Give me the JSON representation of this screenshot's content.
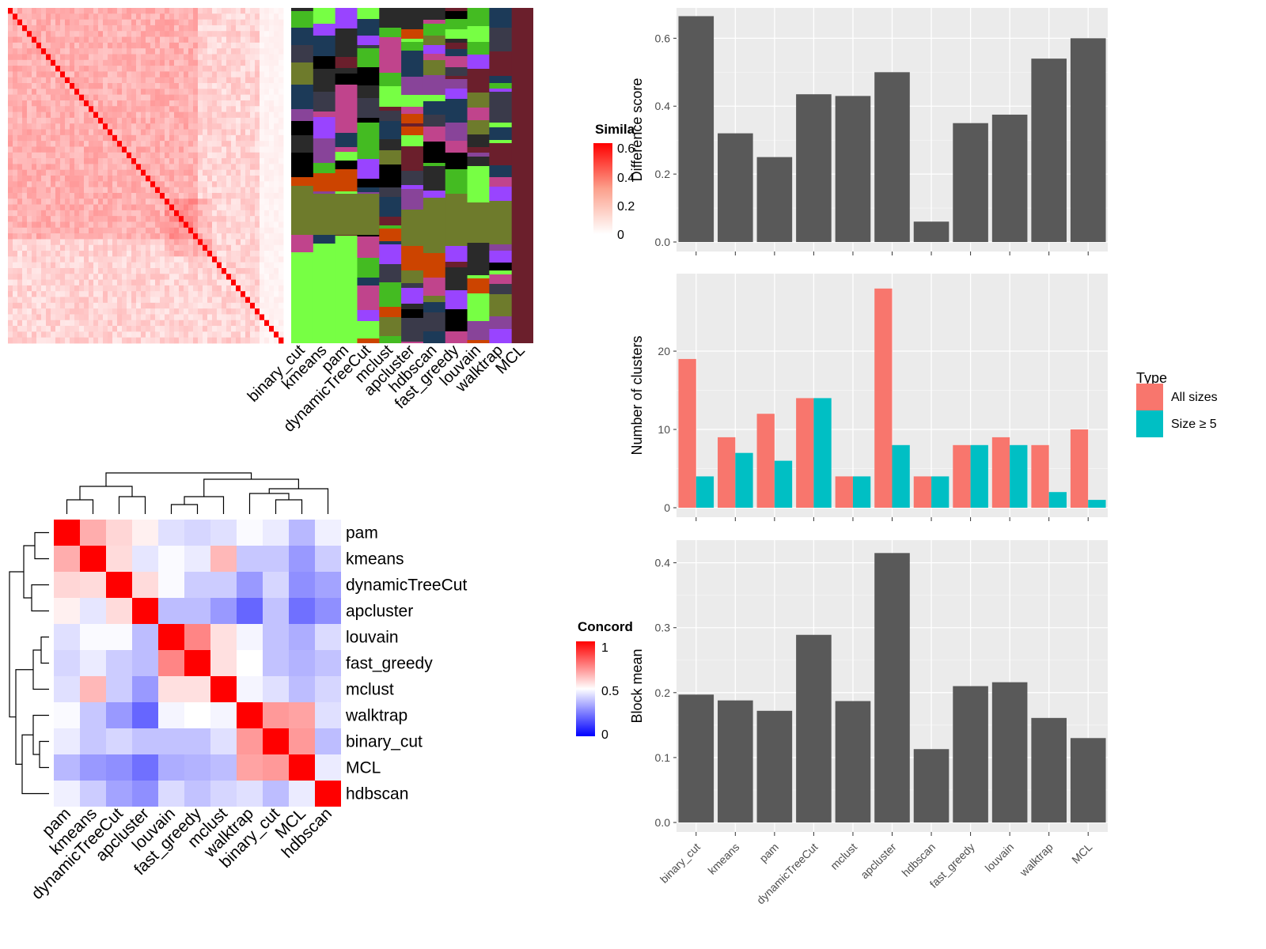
{
  "similarity_panel": {
    "legend_title": "Simila",
    "legend_ticks": [
      "0.6",
      "0.4",
      "0.2",
      "0"
    ],
    "method_labels": [
      "binary_cut",
      "kmeans",
      "pam",
      "dynamicTreeCut",
      "mclust",
      "apcluster",
      "hdbscan",
      "fast_greedy",
      "louvain",
      "walktrap",
      "MCL"
    ]
  },
  "concordance_panel": {
    "legend_title": "Concord",
    "legend_ticks": [
      "1",
      "0.5",
      "0"
    ],
    "methods": [
      "pam",
      "kmeans",
      "dynamicTreeCut",
      "apcluster",
      "louvain",
      "fast_greedy",
      "mclust",
      "walktrap",
      "binary_cut",
      "MCL",
      "hdbscan"
    ]
  },
  "chart_data": [
    {
      "type": "bar",
      "title": "",
      "xlabel": "",
      "ylabel": "Difference score",
      "ylim": [
        0,
        0.68
      ],
      "yticks": [
        "0.0",
        "0.2",
        "0.4",
        "0.6"
      ],
      "categories": [
        "binary_cut",
        "kmeans",
        "pam",
        "dynamicTreeCut",
        "mclust",
        "apcluster",
        "hdbscan",
        "fast_greedy",
        "louvain",
        "walktrap",
        "MCL"
      ],
      "values": [
        0.665,
        0.32,
        0.25,
        0.435,
        0.43,
        0.5,
        0.06,
        0.35,
        0.375,
        0.54,
        0.6
      ],
      "bar_color": "#595959"
    },
    {
      "type": "bar",
      "title": "",
      "xlabel": "",
      "ylabel": "Number of clusters",
      "ylim": [
        0,
        29.5
      ],
      "yticks": [
        "0",
        "10",
        "20"
      ],
      "categories": [
        "binary_cut",
        "kmeans",
        "pam",
        "dynamicTreeCut",
        "mclust",
        "apcluster",
        "hdbscan",
        "fast_greedy",
        "louvain",
        "walktrap",
        "MCL"
      ],
      "legend_title": "Type",
      "legend_position": "right",
      "series": [
        {
          "name": "All sizes",
          "color": "#F8766D",
          "values": [
            19,
            9,
            12,
            14,
            4,
            28,
            4,
            8,
            9,
            8,
            10
          ]
        },
        {
          "name": "Size ≥ 5",
          "color": "#00BFC4",
          "values": [
            4,
            7,
            6,
            14,
            4,
            8,
            4,
            8,
            8,
            2,
            1
          ]
        }
      ]
    },
    {
      "type": "bar",
      "title": "",
      "xlabel": "",
      "ylabel": "Block mean",
      "ylim": [
        0,
        0.43
      ],
      "yticks": [
        "0.0",
        "0.1",
        "0.2",
        "0.3",
        "0.4"
      ],
      "categories": [
        "binary_cut",
        "kmeans",
        "pam",
        "dynamicTreeCut",
        "mclust",
        "apcluster",
        "hdbscan",
        "fast_greedy",
        "louvain",
        "walktrap",
        "MCL"
      ],
      "values": [
        0.197,
        0.188,
        0.172,
        0.289,
        0.187,
        0.415,
        0.113,
        0.21,
        0.216,
        0.161,
        0.13
      ],
      "bar_color": "#595959"
    },
    {
      "type": "heatmap",
      "title": "",
      "rows": [
        "pam",
        "kmeans",
        "dynamicTreeCut",
        "apcluster",
        "louvain",
        "fast_greedy",
        "mclust",
        "walktrap",
        "binary_cut",
        "MCL",
        "hdbscan"
      ],
      "cols": [
        "pam",
        "kmeans",
        "dynamicTreeCut",
        "apcluster",
        "louvain",
        "fast_greedy",
        "mclust",
        "walktrap",
        "binary_cut",
        "MCL",
        "hdbscan"
      ],
      "scale": {
        "min": 0,
        "mid": 0.5,
        "max": 1,
        "low_color": "#0000FF",
        "mid_color": "#FFFFFF",
        "high_color": "#FF0000"
      },
      "values": [
        [
          1.0,
          0.66,
          0.58,
          0.53,
          0.44,
          0.42,
          0.44,
          0.49,
          0.46,
          0.36,
          0.47
        ],
        [
          0.66,
          1.0,
          0.57,
          0.45,
          0.49,
          0.46,
          0.64,
          0.39,
          0.39,
          0.3,
          0.4
        ],
        [
          0.58,
          0.57,
          1.0,
          0.57,
          0.49,
          0.4,
          0.4,
          0.3,
          0.42,
          0.28,
          0.32
        ],
        [
          0.53,
          0.45,
          0.57,
          1.0,
          0.37,
          0.37,
          0.3,
          0.2,
          0.38,
          0.22,
          0.28
        ],
        [
          0.44,
          0.49,
          0.49,
          0.37,
          1.0,
          0.74,
          0.56,
          0.48,
          0.38,
          0.34,
          0.43
        ],
        [
          0.42,
          0.46,
          0.4,
          0.37,
          0.74,
          1.0,
          0.56,
          0.5,
          0.38,
          0.35,
          0.38
        ],
        [
          0.44,
          0.64,
          0.4,
          0.3,
          0.56,
          0.56,
          1.0,
          0.48,
          0.44,
          0.37,
          0.42
        ],
        [
          0.49,
          0.39,
          0.3,
          0.2,
          0.48,
          0.5,
          0.48,
          1.0,
          0.7,
          0.68,
          0.44
        ],
        [
          0.46,
          0.39,
          0.42,
          0.38,
          0.38,
          0.38,
          0.44,
          0.7,
          1.0,
          0.7,
          0.37
        ],
        [
          0.36,
          0.3,
          0.28,
          0.22,
          0.34,
          0.35,
          0.37,
          0.68,
          0.7,
          1.0,
          0.46
        ],
        [
          0.47,
          0.4,
          0.32,
          0.28,
          0.43,
          0.38,
          0.42,
          0.44,
          0.37,
          0.46,
          1.0
        ]
      ]
    }
  ]
}
